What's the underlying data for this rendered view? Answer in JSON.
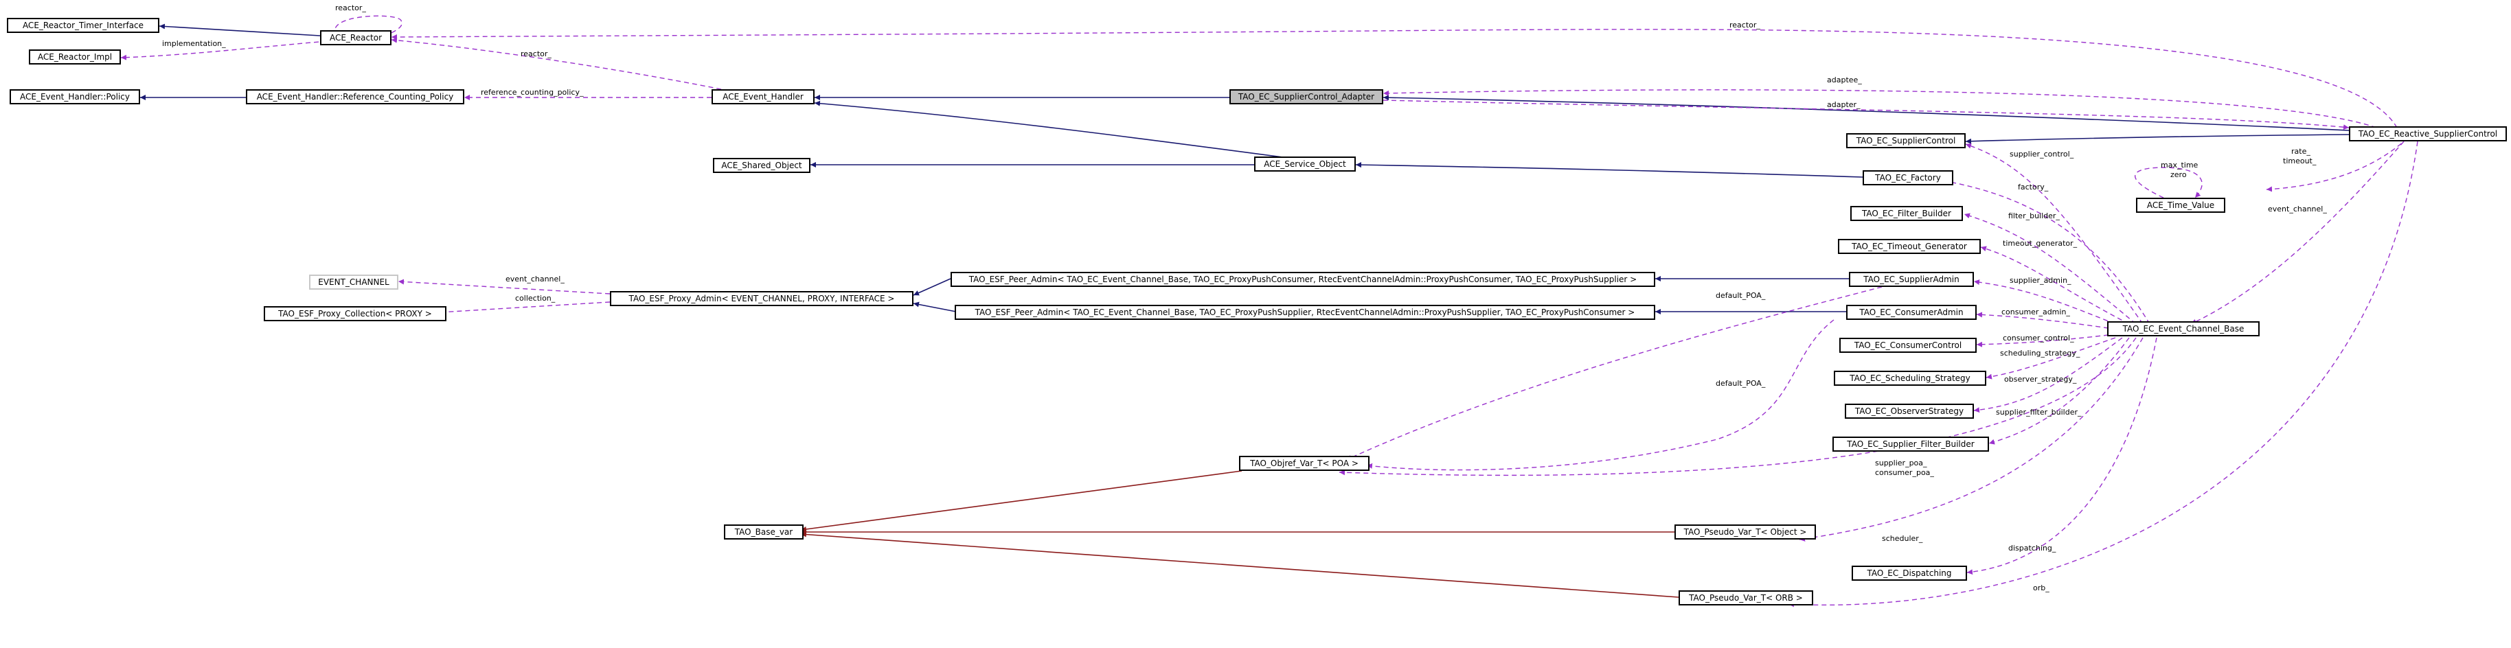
{
  "colors": {
    "inheritance": "#191970",
    "template_instance": "#8b1a1a",
    "usage": "#9a32cd",
    "focus_fill": "#bfbfbf"
  },
  "nodes": {
    "reactor_timer_interface": "ACE_Reactor_Timer_Interface",
    "reactor": "ACE_Reactor",
    "reactor_impl": "ACE_Reactor_Impl",
    "event_handler_policy": "ACE_Event_Handler::Policy",
    "ref_counting_policy": "ACE_Event_Handler::Reference_Counting_Policy",
    "event_handler": "ACE_Event_Handler",
    "supplier_control_adapter": "TAO_EC_SupplierControl_Adapter",
    "reactive_supplier_control": "TAO_EC_Reactive_SupplierControl",
    "supplier_control": "TAO_EC_SupplierControl",
    "time_value": "ACE_Time_Value",
    "shared_object": "ACE_Shared_Object",
    "service_object": "ACE_Service_Object",
    "ec_factory": "TAO_EC_Factory",
    "filter_builder": "TAO_EC_Filter_Builder",
    "timeout_generator": "TAO_EC_Timeout_Generator",
    "event_channel": "EVENT_CHANNEL",
    "proxy_admin": "TAO_ESF_Proxy_Admin< EVENT_CHANNEL, PROXY, INTERFACE >",
    "proxy_collection": "TAO_ESF_Proxy_Collection< PROXY >",
    "peer_admin_consumer": "TAO_ESF_Peer_Admin< TAO_EC_Event_Channel_Base, TAO_EC_ProxyPushConsumer, RtecEventChannelAdmin::ProxyPushConsumer, TAO_EC_ProxyPushSupplier >",
    "peer_admin_supplier": "TAO_ESF_Peer_Admin< TAO_EC_Event_Channel_Base, TAO_EC_ProxyPushSupplier, RtecEventChannelAdmin::ProxyPushSupplier, TAO_EC_ProxyPushConsumer >",
    "supplier_admin": "TAO_EC_SupplierAdmin",
    "consumer_admin": "TAO_EC_ConsumerAdmin",
    "event_channel_base": "TAO_EC_Event_Channel_Base",
    "consumer_control": "TAO_EC_ConsumerControl",
    "scheduling_strategy": "TAO_EC_Scheduling_Strategy",
    "observer_strategy": "TAO_EC_ObserverStrategy",
    "supplier_filter_builder": "TAO_EC_Supplier_Filter_Builder",
    "objref_var_poa": "TAO_Objref_Var_T< POA >",
    "base_var": "TAO_Base_var",
    "pseudo_var_object": "TAO_Pseudo_Var_T< Object >",
    "ec_dispatching": "TAO_EC_Dispatching",
    "pseudo_var_orb": "TAO_Pseudo_Var_T< ORB >"
  },
  "edge_labels": {
    "reactor_self": "reactor_",
    "implementation": "implementation_",
    "reactor_to_event_handler": "reactor_",
    "reactor_to_reactive": "reactor_",
    "reference_counting_policy": "reference_counting_policy_",
    "adaptee": "adaptee_",
    "adapter": "adapter_",
    "supplier_control": "supplier_control_",
    "max_time": "max_time",
    "zero": "zero",
    "rate": "rate_",
    "timeout": "timeout_",
    "factory": "factory_",
    "filter_builder": "filter_builder_",
    "event_channel_reactive": "event_channel_",
    "timeout_generator": "timeout_generator_",
    "event_channel_proxy": "event_channel_",
    "collection": "collection_",
    "supplier_admin": "supplier_admin_",
    "default_poa_1": "default_POA_",
    "consumer_admin": "consumer_admin_",
    "consumer_control": "consumer_control_",
    "scheduling_strategy": "scheduling_strategy_",
    "default_poa_2": "default_POA_",
    "observer_strategy": "observer_strategy_",
    "supplier_filter_builder": "supplier_filter_builder_",
    "supplier_poa": "supplier_poa_",
    "consumer_poa": "consumer_poa_",
    "scheduler": "scheduler_",
    "dispatching": "dispatching_",
    "orb": "orb_"
  }
}
